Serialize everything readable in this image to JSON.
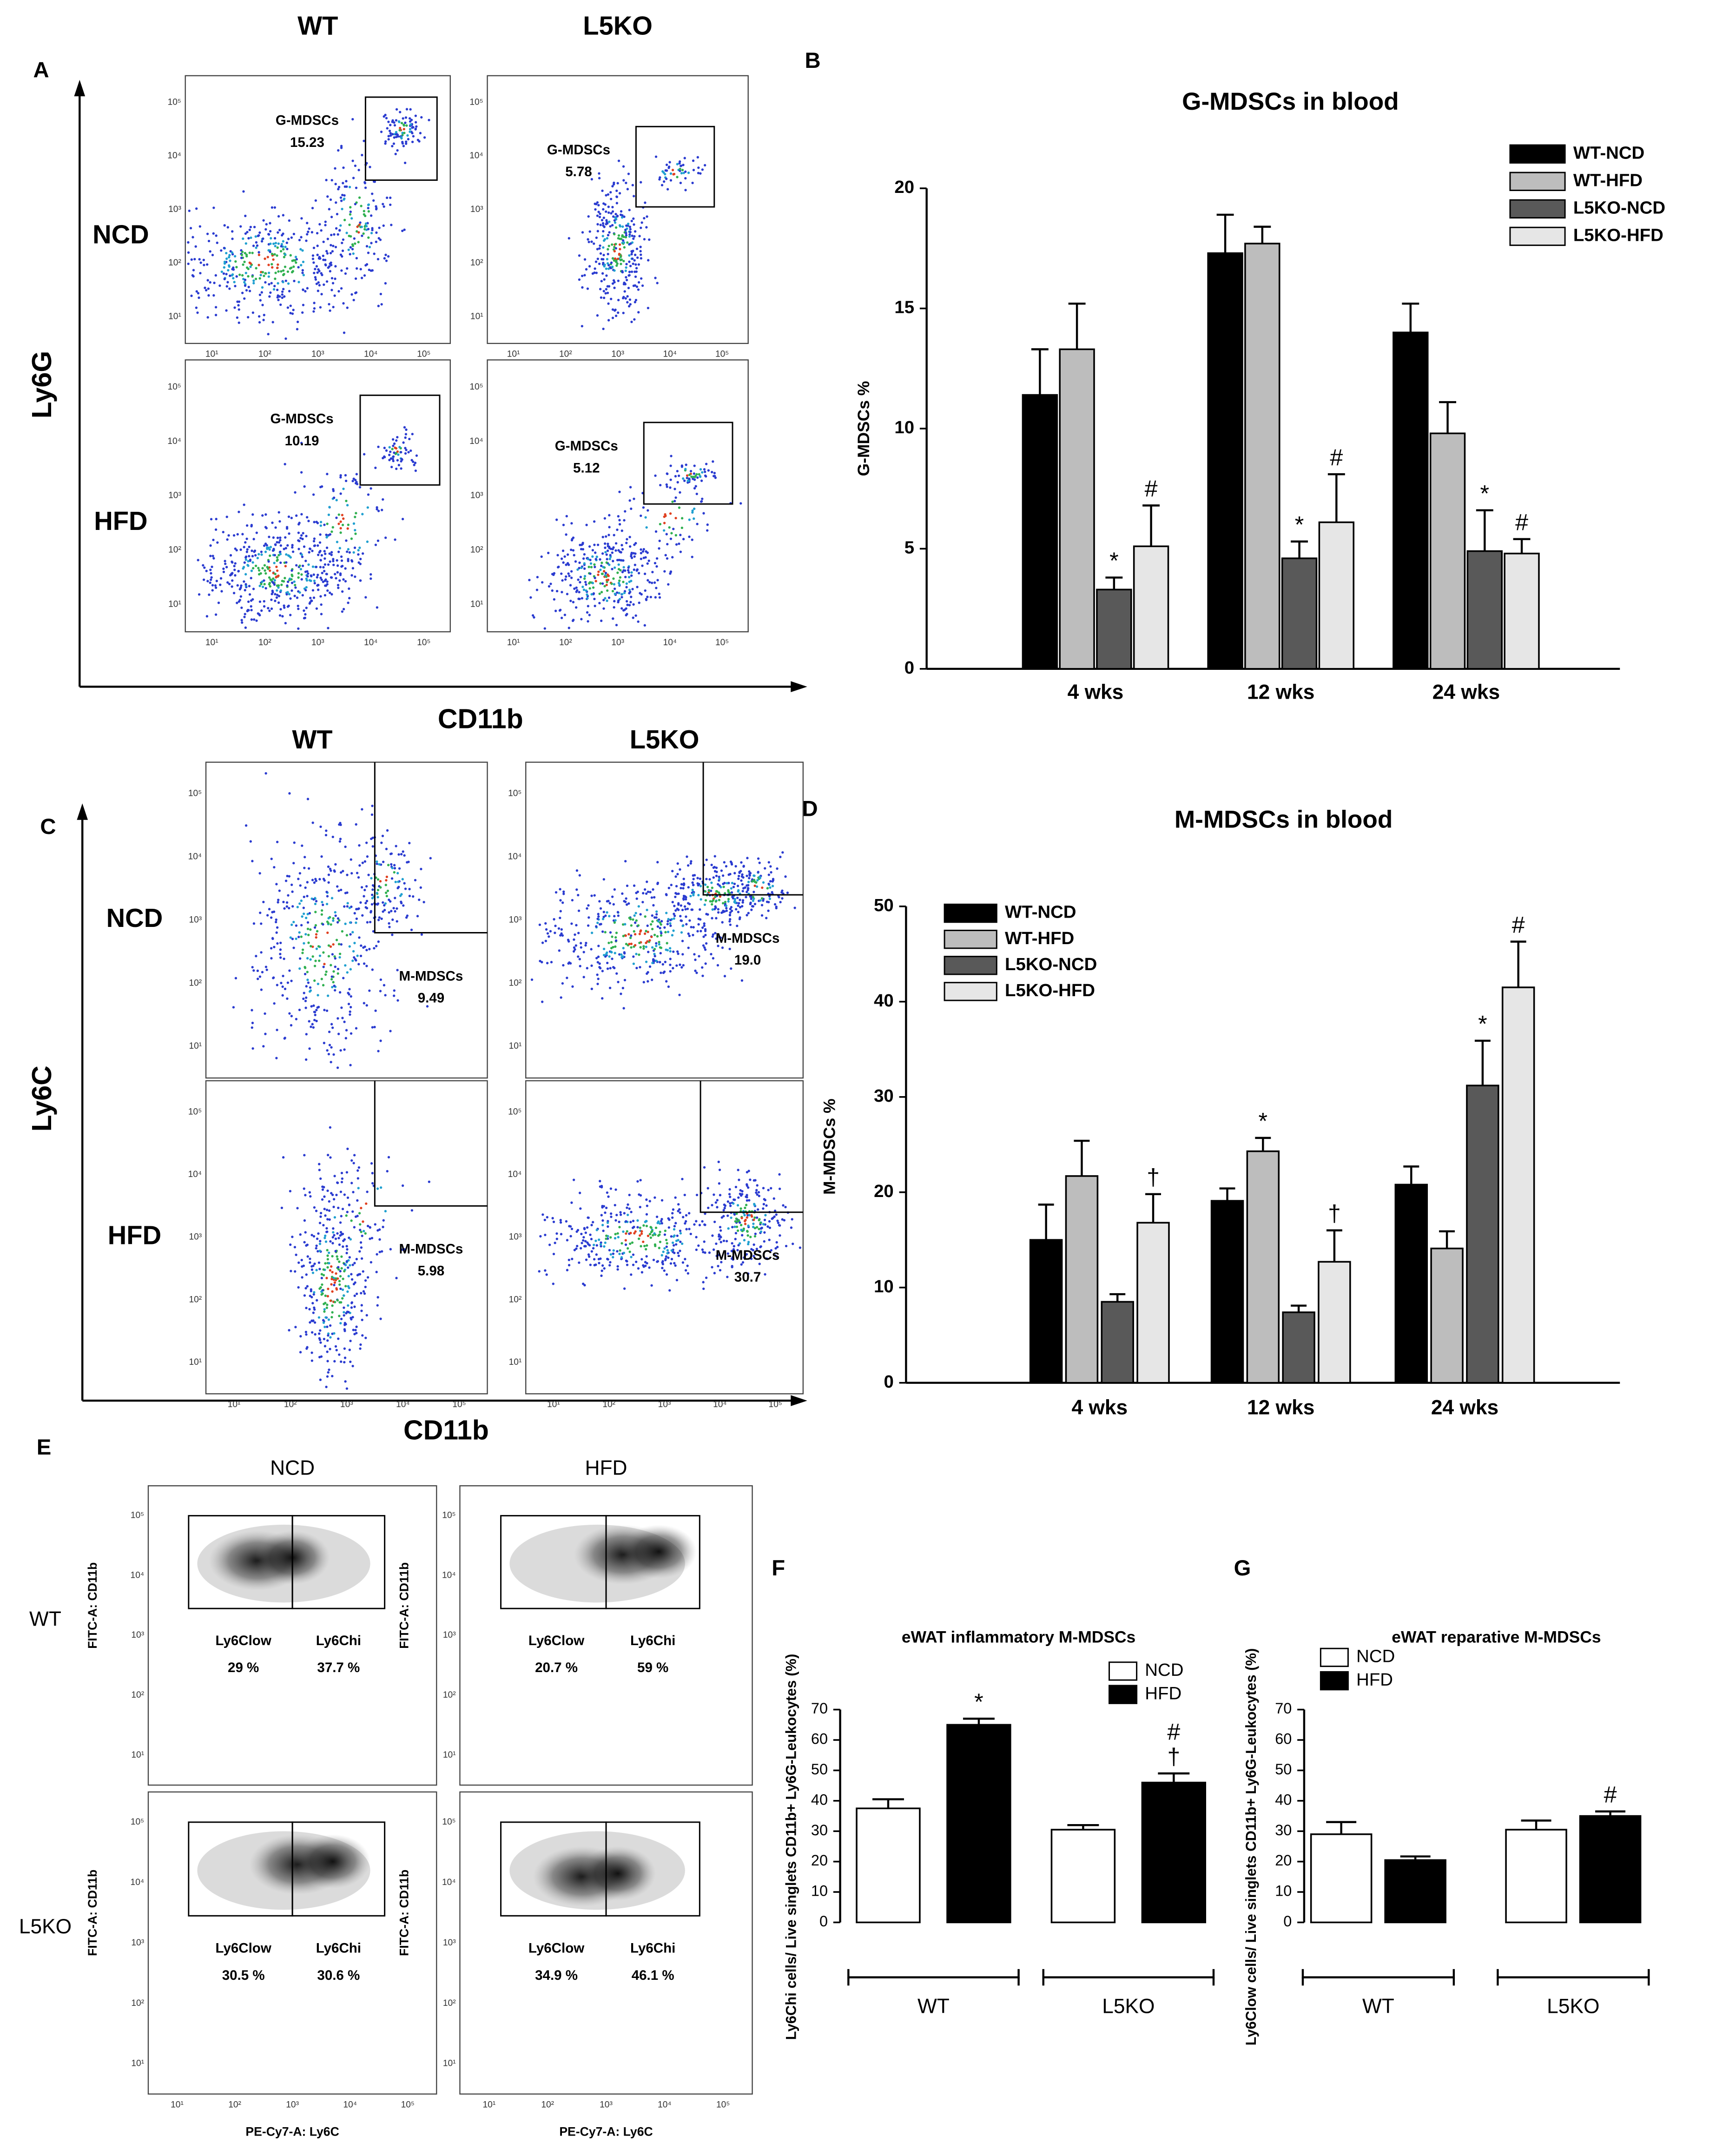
{
  "panel_letters": [
    "A",
    "B",
    "C",
    "D",
    "E",
    "F",
    "G"
  ],
  "flow_tick_labels": [
    "10¹",
    "10²",
    "10³",
    "10⁴",
    "10⁵"
  ],
  "flow_g": {
    "columns": [
      "WT",
      "L5KO"
    ],
    "rows": [
      "NCD",
      "HFD"
    ],
    "y_label": "Ly6G",
    "x_label": "CD11b",
    "gate_label": "G-MDSCs",
    "values": [
      [
        "15.23",
        "5.78"
      ],
      [
        "10.19",
        "5.12"
      ]
    ]
  },
  "flow_m": {
    "columns": [
      "WT",
      "L5KO"
    ],
    "rows": [
      "NCD",
      "HFD"
    ],
    "y_label": "Ly6C",
    "x_label": "CD11b",
    "gate_label": "M-MDSCs",
    "values": [
      [
        "9.49",
        "19.0"
      ],
      [
        "5.98",
        "30.7"
      ]
    ]
  },
  "flow_e": {
    "columns": [
      "NCD",
      "HFD"
    ],
    "rows": [
      "WT",
      "L5KO"
    ],
    "y_label": "FITC-A: CD11b",
    "x_label": "PE-Cy7-A: Ly6C",
    "gate_labels": [
      "Ly6Clow",
      "Ly6Chi"
    ],
    "values": [
      [
        [
          "29 %",
          "37.7 %"
        ],
        [
          "20.7 %",
          "59 %"
        ]
      ],
      [
        [
          "30.5 %",
          "30.6 %"
        ],
        [
          "34.9 %",
          "46.1 %"
        ]
      ]
    ]
  },
  "chart_data": [
    {
      "type": "bar",
      "title": "G-MDSCs in blood",
      "ylabel": "G-MDSCs %",
      "categories": [
        "4 wks",
        "12 wks",
        "24 wks"
      ],
      "ylim": [
        0,
        20
      ],
      "yticks": [
        0,
        5,
        10,
        15,
        20
      ],
      "legend": "upper right",
      "series": [
        {
          "name": "WT-NCD",
          "color": "#000000",
          "values": [
            11.4,
            17.3,
            14.0
          ],
          "errors": [
            1.9,
            1.6,
            1.2
          ]
        },
        {
          "name": "WT-HFD",
          "color": "#bdbdbd",
          "values": [
            13.3,
            17.7,
            9.8
          ],
          "errors": [
            1.9,
            0.7,
            1.3
          ]
        },
        {
          "name": "L5KO-NCD",
          "color": "#595959",
          "values": [
            3.3,
            4.6,
            4.9
          ],
          "errors": [
            0.5,
            0.7,
            1.7
          ],
          "annotations": [
            "*",
            "*",
            "*"
          ]
        },
        {
          "name": "L5KO-HFD",
          "color": "#e6e6e6",
          "values": [
            5.1,
            6.1,
            4.8
          ],
          "errors": [
            1.7,
            2.0,
            0.6
          ],
          "annotations": [
            "#",
            "#",
            "#"
          ]
        }
      ]
    },
    {
      "type": "bar",
      "title": "M-MDSCs in blood",
      "ylabel": "M-MDSCs %",
      "categories": [
        "4 wks",
        "12 wks",
        "24 wks"
      ],
      "ylim": [
        0,
        50
      ],
      "yticks": [
        0,
        10,
        20,
        30,
        40,
        50
      ],
      "legend": "upper left",
      "series": [
        {
          "name": "WT-NCD",
          "color": "#000000",
          "values": [
            15.0,
            19.1,
            20.8
          ],
          "errors": [
            3.7,
            1.3,
            1.9
          ]
        },
        {
          "name": "WT-HFD",
          "color": "#bdbdbd",
          "values": [
            21.7,
            24.3,
            14.1
          ],
          "errors": [
            3.7,
            1.4,
            1.8
          ],
          "annotations": [
            null,
            "*",
            null
          ]
        },
        {
          "name": "L5KO-NCD",
          "color": "#595959",
          "values": [
            8.5,
            7.4,
            31.2
          ],
          "errors": [
            0.8,
            0.7,
            4.7
          ],
          "annotations": [
            null,
            null,
            "*"
          ]
        },
        {
          "name": "L5KO-HFD",
          "color": "#e6e6e6",
          "values": [
            16.8,
            12.7,
            41.5
          ],
          "errors": [
            3.0,
            3.3,
            4.8
          ],
          "annotations": [
            "†",
            "†",
            "#"
          ]
        }
      ]
    },
    {
      "type": "bar",
      "title": "eWAT inflammatory M-MDSCs",
      "ylabel": "Ly6Chi cells/ Live singlets CD11b+ Ly6G-Leukocytes (%)",
      "categories": [
        "WT",
        "L5KO"
      ],
      "ylim": [
        0,
        70
      ],
      "yticks": [
        0,
        10,
        20,
        30,
        40,
        50,
        60,
        70
      ],
      "legend": "upper right",
      "series": [
        {
          "name": "NCD",
          "color": "#ffffff",
          "values": [
            37.5,
            30.5
          ],
          "errors": [
            3.0,
            1.5
          ]
        },
        {
          "name": "HFD",
          "color": "#000000",
          "values": [
            65.0,
            46.0
          ],
          "errors": [
            2.0,
            3.0
          ],
          "annotations": [
            "*",
            [
              "#",
              "†"
            ]
          ]
        }
      ]
    },
    {
      "type": "bar",
      "title": "eWAT reparative M-MDSCs",
      "ylabel": "Ly6Clow cells/ Live singlets CD11b+ Ly6G-Leukocytes (%)",
      "categories": [
        "WT",
        "L5KO"
      ],
      "ylim": [
        0,
        70
      ],
      "yticks": [
        0,
        10,
        20,
        30,
        40,
        50,
        60,
        70
      ],
      "legend": "upper left",
      "series": [
        {
          "name": "NCD",
          "color": "#ffffff",
          "values": [
            29.0,
            30.5
          ],
          "errors": [
            4.0,
            3.0
          ]
        },
        {
          "name": "HFD",
          "color": "#000000",
          "values": [
            20.5,
            35.0
          ],
          "errors": [
            1.2,
            1.5
          ],
          "annotations": [
            null,
            "#"
          ]
        }
      ]
    }
  ]
}
